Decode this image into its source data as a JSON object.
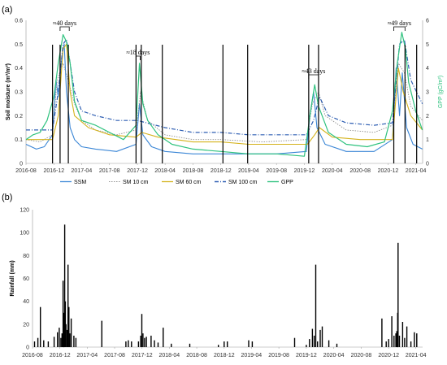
{
  "colors": {
    "ssm": "#3a86d6",
    "sm10": "#909090",
    "sm60": "#d4b21c",
    "sm100": "#2f5fb3",
    "gpp": "#2ec27e",
    "rain": "#000000",
    "event_line": "#000000"
  },
  "chart_data": [
    {
      "panel": "(a)",
      "type": "line",
      "x_ticks": [
        "2016-08",
        "2016-12",
        "2017-04",
        "2017-08",
        "2017-12",
        "2018-04",
        "2018-08",
        "2018-12",
        "2019-04",
        "2019-08",
        "2019-12",
        "2020-04",
        "2020-08",
        "2020-12",
        "2021-04"
      ],
      "xlim": [
        "2016-08-01",
        "2021-05-01"
      ],
      "ylabel": "Soil moisture (m³/m³)",
      "ylim": [
        0,
        0.6
      ],
      "y_ticks": [
        "0",
        "0.1",
        "0.2",
        "0.3",
        "0.4",
        "0.5",
        "0.6"
      ],
      "y2label": "GPP (gC/m²)",
      "y2lim": [
        0,
        6
      ],
      "y2_ticks": [
        "0",
        "1",
        "2",
        "3",
        "4",
        "5",
        "6"
      ],
      "legend_position": "bottom",
      "event_lines": [
        "2016-11-25",
        "2016-12-28",
        "2017-02-02",
        "2017-11-25",
        "2017-12-18",
        "2018-03-20",
        "2018-12-10",
        "2019-03-28",
        "2019-12-20",
        "2020-02-01",
        "2020-12-26",
        "2021-02-13",
        "2021-04-05"
      ],
      "annotations": [
        {
          "text": "≈40 days",
          "start": "2016-12-28",
          "end": "2017-02-06"
        },
        {
          "text": "≈18 days",
          "start": "2017-11-25",
          "end": "2017-12-13"
        },
        {
          "text": "≈43 days",
          "start": "2019-12-20",
          "end": "2020-02-01"
        },
        {
          "text": "≈49 days",
          "start": "2020-12-26",
          "end": "2021-02-13"
        }
      ],
      "series": [
        {
          "name": "SSM",
          "style": "solid",
          "axis": "left",
          "points": [
            [
              "2016-08-01",
              0.08
            ],
            [
              "2016-09-15",
              0.06
            ],
            [
              "2016-10-20",
              0.07
            ],
            [
              "2016-11-25",
              0.12
            ],
            [
              "2016-12-10",
              0.35
            ],
            [
              "2016-12-20",
              0.28
            ],
            [
              "2017-01-05",
              0.45
            ],
            [
              "2017-01-15",
              0.5
            ],
            [
              "2017-01-25",
              0.3
            ],
            [
              "2017-02-10",
              0.15
            ],
            [
              "2017-03-01",
              0.1
            ],
            [
              "2017-04-01",
              0.07
            ],
            [
              "2017-06-01",
              0.06
            ],
            [
              "2017-09-01",
              0.05
            ],
            [
              "2017-11-25",
              0.08
            ],
            [
              "2017-12-10",
              0.25
            ],
            [
              "2017-12-25",
              0.12
            ],
            [
              "2018-02-01",
              0.07
            ],
            [
              "2018-04-01",
              0.05
            ],
            [
              "2018-08-01",
              0.04
            ],
            [
              "2018-12-01",
              0.04
            ],
            [
              "2019-04-01",
              0.04
            ],
            [
              "2019-08-01",
              0.04
            ],
            [
              "2019-12-10",
              0.05
            ],
            [
              "2019-12-25",
              0.2
            ],
            [
              "2020-01-10",
              0.3
            ],
            [
              "2020-01-25",
              0.15
            ],
            [
              "2020-03-01",
              0.08
            ],
            [
              "2020-06-01",
              0.05
            ],
            [
              "2020-10-01",
              0.05
            ],
            [
              "2020-12-20",
              0.1
            ],
            [
              "2021-01-05",
              0.4
            ],
            [
              "2021-01-20",
              0.2
            ],
            [
              "2021-02-01",
              0.38
            ],
            [
              "2021-02-20",
              0.15
            ],
            [
              "2021-03-20",
              0.08
            ],
            [
              "2021-04-30",
              0.06
            ]
          ]
        },
        {
          "name": "SM 10 cm",
          "style": "dotted",
          "axis": "left",
          "points": [
            [
              "2016-08-01",
              0.1
            ],
            [
              "2016-10-01",
              0.09
            ],
            [
              "2016-11-25",
              0.12
            ],
            [
              "2016-12-15",
              0.35
            ],
            [
              "2017-01-10",
              0.42
            ],
            [
              "2017-02-01",
              0.35
            ],
            [
              "2017-03-01",
              0.25
            ],
            [
              "2017-04-01",
              0.18
            ],
            [
              "2017-06-01",
              0.14
            ],
            [
              "2017-09-01",
              0.12
            ],
            [
              "2017-11-25",
              0.14
            ],
            [
              "2017-12-15",
              0.3
            ],
            [
              "2018-01-15",
              0.18
            ],
            [
              "2018-04-01",
              0.12
            ],
            [
              "2018-08-01",
              0.1
            ],
            [
              "2018-12-01",
              0.1
            ],
            [
              "2019-06-01",
              0.09
            ],
            [
              "2019-12-10",
              0.1
            ],
            [
              "2020-01-05",
              0.25
            ],
            [
              "2020-02-01",
              0.3
            ],
            [
              "2020-03-01",
              0.2
            ],
            [
              "2020-06-01",
              0.14
            ],
            [
              "2020-10-01",
              0.13
            ],
            [
              "2020-12-20",
              0.16
            ],
            [
              "2021-01-15",
              0.42
            ],
            [
              "2021-02-10",
              0.38
            ],
            [
              "2021-03-10",
              0.24
            ],
            [
              "2021-04-30",
              0.18
            ]
          ]
        },
        {
          "name": "SM 60 cm",
          "style": "solid",
          "axis": "left",
          "points": [
            [
              "2016-08-01",
              0.1
            ],
            [
              "2016-11-25",
              0.1
            ],
            [
              "2016-12-20",
              0.2
            ],
            [
              "2017-01-10",
              0.48
            ],
            [
              "2017-01-25",
              0.5
            ],
            [
              "2017-02-10",
              0.3
            ],
            [
              "2017-03-01",
              0.2
            ],
            [
              "2017-05-01",
              0.15
            ],
            [
              "2017-08-01",
              0.12
            ],
            [
              "2017-11-25",
              0.11
            ],
            [
              "2017-12-20",
              0.13
            ],
            [
              "2018-03-01",
              0.11
            ],
            [
              "2018-08-01",
              0.09
            ],
            [
              "2018-12-01",
              0.09
            ],
            [
              "2019-04-01",
              0.08
            ],
            [
              "2019-08-01",
              0.08
            ],
            [
              "2019-12-15",
              0.08
            ],
            [
              "2020-01-15",
              0.12
            ],
            [
              "2020-02-05",
              0.15
            ],
            [
              "2020-04-01",
              0.11
            ],
            [
              "2020-08-01",
              0.1
            ],
            [
              "2020-12-20",
              0.1
            ],
            [
              "2021-01-15",
              0.4
            ],
            [
              "2021-02-05",
              0.3
            ],
            [
              "2021-03-10",
              0.2
            ],
            [
              "2021-04-30",
              0.14
            ]
          ]
        },
        {
          "name": "SM 100 cm",
          "style": "dashdot",
          "axis": "left",
          "points": [
            [
              "2016-08-01",
              0.14
            ],
            [
              "2016-11-25",
              0.14
            ],
            [
              "2016-12-20",
              0.3
            ],
            [
              "2017-01-10",
              0.5
            ],
            [
              "2017-01-25",
              0.52
            ],
            [
              "2017-02-10",
              0.42
            ],
            [
              "2017-03-01",
              0.3
            ],
            [
              "2017-04-01",
              0.22
            ],
            [
              "2017-06-01",
              0.2
            ],
            [
              "2017-09-01",
              0.18
            ],
            [
              "2017-12-01",
              0.18
            ],
            [
              "2018-04-01",
              0.15
            ],
            [
              "2018-08-01",
              0.13
            ],
            [
              "2018-12-01",
              0.13
            ],
            [
              "2019-04-01",
              0.12
            ],
            [
              "2019-08-01",
              0.12
            ],
            [
              "2019-12-10",
              0.12
            ],
            [
              "2020-01-10",
              0.18
            ],
            [
              "2020-02-05",
              0.28
            ],
            [
              "2020-03-15",
              0.2
            ],
            [
              "2020-06-01",
              0.17
            ],
            [
              "2020-10-01",
              0.16
            ],
            [
              "2020-12-20",
              0.17
            ],
            [
              "2021-01-20",
              0.5
            ],
            [
              "2021-02-10",
              0.52
            ],
            [
              "2021-03-10",
              0.35
            ],
            [
              "2021-04-30",
              0.25
            ]
          ]
        },
        {
          "name": "GPP",
          "style": "solid",
          "axis": "right",
          "points": [
            [
              "2016-08-01",
              1.0
            ],
            [
              "2016-09-01",
              1.2
            ],
            [
              "2016-10-01",
              1.3
            ],
            [
              "2016-11-01",
              1.8
            ],
            [
              "2016-12-01",
              2.8
            ],
            [
              "2016-12-20",
              4.2
            ],
            [
              "2017-01-10",
              5.4
            ],
            [
              "2017-01-25",
              5.1
            ],
            [
              "2017-02-10",
              4.2
            ],
            [
              "2017-03-01",
              2.6
            ],
            [
              "2017-04-01",
              1.8
            ],
            [
              "2017-06-01",
              1.6
            ],
            [
              "2017-08-01",
              1.3
            ],
            [
              "2017-10-01",
              1.0
            ],
            [
              "2017-11-25",
              1.6
            ],
            [
              "2017-12-10",
              4.2
            ],
            [
              "2017-12-25",
              2.5
            ],
            [
              "2018-01-15",
              1.8
            ],
            [
              "2018-03-01",
              1.2
            ],
            [
              "2018-05-01",
              0.8
            ],
            [
              "2018-08-01",
              0.6
            ],
            [
              "2018-12-01",
              0.5
            ],
            [
              "2019-04-01",
              0.4
            ],
            [
              "2019-08-01",
              0.4
            ],
            [
              "2019-12-01",
              0.3
            ],
            [
              "2019-12-25",
              2.0
            ],
            [
              "2020-01-15",
              3.3
            ],
            [
              "2020-02-01",
              2.4
            ],
            [
              "2020-03-15",
              1.3
            ],
            [
              "2020-06-01",
              0.8
            ],
            [
              "2020-09-01",
              0.7
            ],
            [
              "2020-11-15",
              0.9
            ],
            [
              "2020-12-20",
              2.2
            ],
            [
              "2021-01-10",
              4.2
            ],
            [
              "2021-01-30",
              5.5
            ],
            [
              "2021-02-15",
              4.8
            ],
            [
              "2021-03-01",
              3.4
            ],
            [
              "2021-04-01",
              2.2
            ],
            [
              "2021-04-30",
              1.4
            ]
          ]
        }
      ]
    },
    {
      "panel": "(b)",
      "type": "bar",
      "x_ticks": [
        "2016-08",
        "2016-12",
        "2017-04",
        "2017-08",
        "2017-12",
        "2018-04",
        "2018-08",
        "2018-12",
        "2019-04",
        "2019-08",
        "2019-12",
        "2020-04",
        "2020-08",
        "2020-12",
        "2021-04"
      ],
      "xlim": [
        "2016-08-01",
        "2021-05-01"
      ],
      "ylabel": "Rainfall (mm)",
      "ylim": [
        0,
        120
      ],
      "y_ticks": [
        "0",
        "20",
        "40",
        "60",
        "80",
        "100",
        "120"
      ],
      "bars": [
        [
          "2016-08-10",
          5
        ],
        [
          "2016-08-25",
          8
        ],
        [
          "2016-09-05",
          35
        ],
        [
          "2016-09-20",
          6
        ],
        [
          "2016-10-10",
          5
        ],
        [
          "2016-11-05",
          9
        ],
        [
          "2016-11-20",
          13
        ],
        [
          "2016-11-28",
          17
        ],
        [
          "2016-12-05",
          8
        ],
        [
          "2016-12-10",
          12
        ],
        [
          "2016-12-15",
          58
        ],
        [
          "2016-12-18",
          30
        ],
        [
          "2016-12-22",
          107
        ],
        [
          "2016-12-25",
          40
        ],
        [
          "2016-12-28",
          20
        ],
        [
          "2017-01-02",
          15
        ],
        [
          "2017-01-06",
          72
        ],
        [
          "2017-01-10",
          35
        ],
        [
          "2017-01-14",
          12
        ],
        [
          "2017-01-20",
          25
        ],
        [
          "2017-02-01",
          10
        ],
        [
          "2017-02-10",
          8
        ],
        [
          "2017-06-05",
          23
        ],
        [
          "2017-09-20",
          5
        ],
        [
          "2017-10-01",
          6
        ],
        [
          "2017-10-15",
          5
        ],
        [
          "2017-11-15",
          5
        ],
        [
          "2017-11-25",
          10
        ],
        [
          "2017-11-30",
          29
        ],
        [
          "2017-12-05",
          12
        ],
        [
          "2017-12-12",
          8
        ],
        [
          "2017-12-20",
          9
        ],
        [
          "2018-01-10",
          10
        ],
        [
          "2018-01-25",
          6
        ],
        [
          "2018-02-10",
          4
        ],
        [
          "2018-03-05",
          17
        ],
        [
          "2018-04-10",
          3
        ],
        [
          "2018-07-01",
          3
        ],
        [
          "2018-11-05",
          2
        ],
        [
          "2018-12-01",
          5
        ],
        [
          "2018-12-15",
          5
        ],
        [
          "2019-03-20",
          6
        ],
        [
          "2019-04-05",
          5
        ],
        [
          "2019-10-10",
          8
        ],
        [
          "2019-12-01",
          2
        ],
        [
          "2019-12-15",
          7
        ],
        [
          "2019-12-28",
          16
        ],
        [
          "2020-01-05",
          10
        ],
        [
          "2020-01-12",
          72
        ],
        [
          "2020-01-20",
          5
        ],
        [
          "2020-02-01",
          15
        ],
        [
          "2020-02-10",
          18
        ],
        [
          "2020-03-10",
          6
        ],
        [
          "2020-04-15",
          3
        ],
        [
          "2020-11-01",
          25
        ],
        [
          "2020-11-20",
          5
        ],
        [
          "2020-12-01",
          7
        ],
        [
          "2020-12-15",
          27
        ],
        [
          "2020-12-25",
          10
        ],
        [
          "2021-01-02",
          12
        ],
        [
          "2021-01-06",
          14
        ],
        [
          "2021-01-10",
          30
        ],
        [
          "2021-01-12",
          91
        ],
        [
          "2021-01-18",
          10
        ],
        [
          "2021-02-01",
          22
        ],
        [
          "2021-02-10",
          8
        ],
        [
          "2021-02-20",
          18
        ],
        [
          "2021-03-10",
          5
        ],
        [
          "2021-03-25",
          13
        ],
        [
          "2021-04-05",
          12
        ]
      ]
    }
  ]
}
